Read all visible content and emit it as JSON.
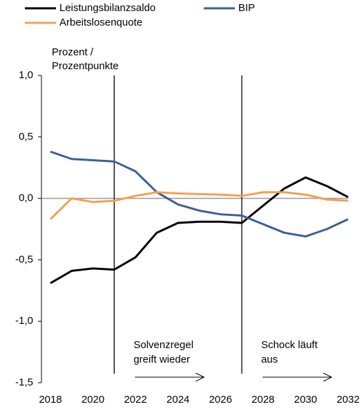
{
  "chart_data": {
    "type": "line",
    "y_axis_label": [
      "Prozent /",
      "Prozentpunkte"
    ],
    "x": [
      2018,
      2019,
      2020,
      2021,
      2022,
      2023,
      2024,
      2025,
      2026,
      2027,
      2028,
      2029,
      2030,
      2031,
      2032
    ],
    "series": [
      {
        "name": "Leistungsbilanzsaldo",
        "color": "#000000",
        "values": [
          -0.69,
          -0.59,
          -0.57,
          -0.58,
          -0.48,
          -0.28,
          -0.2,
          -0.19,
          -0.19,
          -0.2,
          -0.06,
          0.08,
          0.17,
          0.1,
          0.01
        ]
      },
      {
        "name": "BIP",
        "color": "#3a5f96",
        "values": [
          0.38,
          0.32,
          0.31,
          0.3,
          0.22,
          0.05,
          -0.05,
          -0.1,
          -0.13,
          -0.14,
          -0.21,
          -0.28,
          -0.31,
          -0.25,
          -0.17
        ]
      },
      {
        "name": "Arbeitslosenquote",
        "color": "#f4a050",
        "values": [
          -0.17,
          0.0,
          -0.03,
          -0.02,
          0.02,
          0.05,
          0.04,
          0.035,
          0.03,
          0.02,
          0.05,
          0.05,
          0.03,
          -0.01,
          -0.02
        ]
      }
    ],
    "xlim": [
      2018,
      2032
    ],
    "xticks": [
      2018,
      2020,
      2022,
      2024,
      2026,
      2028,
      2030,
      2032
    ],
    "ylim": [
      -1.5,
      1.0
    ],
    "yticks": [
      {
        "value": -1.5,
        "label": "-1,5"
      },
      {
        "value": -1.0,
        "label": "-1,0"
      },
      {
        "value": -0.5,
        "label": "-0,5"
      },
      {
        "value": 0.0,
        "label": "0,0"
      },
      {
        "value": 0.5,
        "label": "0,5"
      },
      {
        "value": 1.0,
        "label": "1,0"
      }
    ],
    "vlines": [
      2021,
      2027
    ],
    "annotations": [
      [
        "Solvenzregel",
        "greift wieder"
      ],
      [
        "Schock läuft",
        "aus"
      ]
    ]
  }
}
